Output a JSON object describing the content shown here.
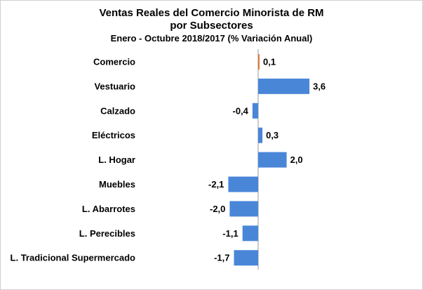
{
  "chart_data": {
    "type": "bar",
    "orientation": "horizontal",
    "title": "Ventas Reales del Comercio Minorista de RM",
    "title_line2": "por Subsectores",
    "subtitle": "Enero - Octubre 2018/2017 (% Variación Anual)",
    "categories": [
      "Comercio",
      "Vestuario",
      "Calzado",
      "Eléctricos",
      "L. Hogar",
      "Muebles",
      "L. Abarrotes",
      "L. Perecibles",
      "L. Tradicional Supermercado"
    ],
    "values": [
      0.1,
      3.6,
      -0.4,
      0.3,
      2.0,
      -2.1,
      -2.0,
      -1.1,
      -1.7
    ],
    "data_labels": [
      "0,1",
      "3,6",
      "-0,4",
      "0,3",
      "2,0",
      "-2,1",
      "-2,0",
      "-1,1",
      "-1,7"
    ],
    "colors": [
      "#e07b39",
      "#4a86d8",
      "#4a86d8",
      "#4a86d8",
      "#4a86d8",
      "#4a86d8",
      "#4a86d8",
      "#4a86d8",
      "#4a86d8"
    ],
    "xlim": [
      -2.5,
      4.5
    ],
    "grid": false,
    "legend": "none"
  }
}
